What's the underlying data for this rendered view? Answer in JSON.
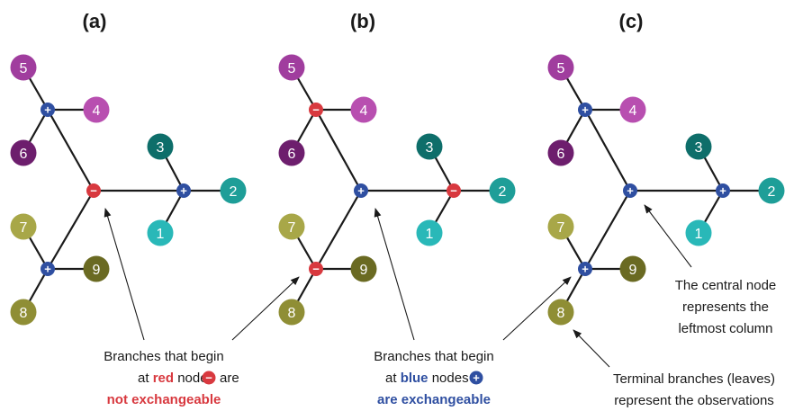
{
  "colors": {
    "blue_node": "#2f4fa1",
    "red_node": "#d8393f",
    "leaf_1": "#29b8b8",
    "leaf_2": "#1e9e98",
    "leaf_3": "#0e6e6a",
    "leaf_4": "#b84fb0",
    "leaf_5": "#a03d9e",
    "leaf_6": "#6d1e6d",
    "leaf_7": "#a8a748",
    "leaf_8": "#8f8e35",
    "leaf_9": "#6a6a22",
    "edge": "#1a1a1a",
    "text": "#1a1a1a"
  },
  "panels": [
    {
      "label": "(a)",
      "leaves": [
        "1",
        "2",
        "3",
        "4",
        "5",
        "6",
        "7",
        "8",
        "9"
      ],
      "node_signs": [
        "+",
        "−",
        "+"
      ]
    },
    {
      "label": "(b)",
      "leaves": [
        "1",
        "2",
        "3",
        "4",
        "5",
        "6",
        "7",
        "8",
        "9"
      ],
      "node_signs": [
        "−",
        "+",
        "−"
      ]
    },
    {
      "label": "(c)",
      "leaves": [
        "1",
        "2",
        "3",
        "4",
        "5",
        "6",
        "7",
        "8",
        "9"
      ],
      "node_signs": [
        "+",
        "+",
        "+"
      ]
    }
  ],
  "annotations": {
    "red": {
      "line1": "Branches that begin",
      "line2_pre": "at ",
      "line2_colored": "red",
      "line2_mid": " nodes ",
      "line2_post": " are",
      "line3": "not exchangeable",
      "node_symbol": "−"
    },
    "blue": {
      "line1": "Branches that begin",
      "line2_pre": "at ",
      "line2_colored": "blue",
      "line2_mid": " nodes ",
      "line2_post": "",
      "line3": "are exchangeable",
      "node_symbol": "+"
    },
    "central": {
      "line1": "The central node",
      "line2": "represents the",
      "line3": "leftmost column"
    },
    "terminal": {
      "line1": "Terminal branches (leaves)",
      "line2": "represent the observations"
    }
  }
}
